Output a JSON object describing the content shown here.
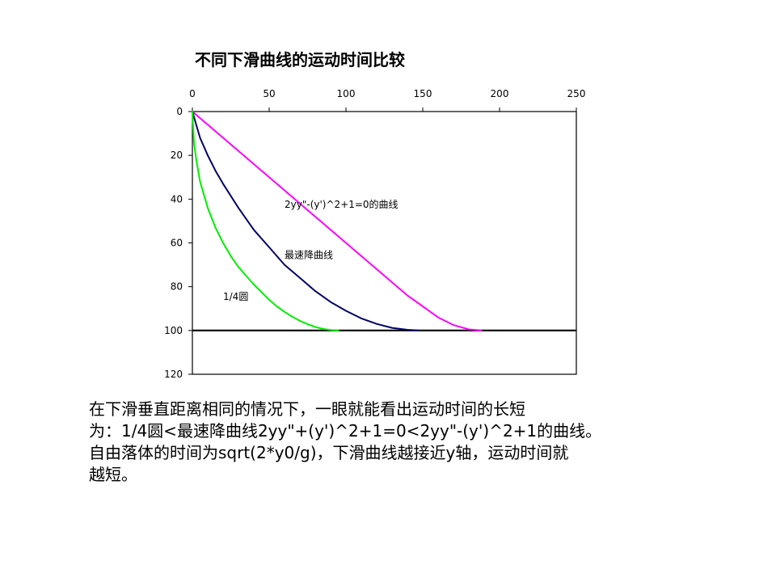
{
  "chart_data": {
    "type": "line",
    "title": "不同下滑曲线的运动时间比较",
    "xlim": [
      0,
      250
    ],
    "ylim": [
      0,
      120
    ],
    "y_inverted": true,
    "x_axis_position": "top",
    "x_ticks": [
      0,
      50,
      100,
      150,
      200,
      250
    ],
    "y_ticks": [
      0,
      20,
      40,
      60,
      80,
      100,
      120
    ],
    "grid": false,
    "reference_lines": [
      {
        "axis": "y",
        "value": 100
      }
    ],
    "series": [
      {
        "name": "2yy\"-(y')^2+1=0的曲线",
        "color": "#ff00ff",
        "points": [
          [
            0,
            0
          ],
          [
            10,
            6
          ],
          [
            20,
            12
          ],
          [
            30,
            18
          ],
          [
            40,
            24
          ],
          [
            50,
            30
          ],
          [
            60,
            36
          ],
          [
            70,
            42
          ],
          [
            80,
            48
          ],
          [
            90,
            54
          ],
          [
            100,
            60
          ],
          [
            110,
            66
          ],
          [
            120,
            72
          ],
          [
            130,
            78
          ],
          [
            140,
            84
          ],
          [
            150,
            89
          ],
          [
            160,
            94
          ],
          [
            170,
            97.5
          ],
          [
            180,
            99.5
          ],
          [
            188,
            100
          ]
        ]
      },
      {
        "name": "最速降曲线",
        "color": "#000066",
        "points": [
          [
            0,
            0
          ],
          [
            5,
            12
          ],
          [
            10,
            20
          ],
          [
            15,
            27
          ],
          [
            20,
            33
          ],
          [
            30,
            44
          ],
          [
            40,
            54
          ],
          [
            50,
            62
          ],
          [
            60,
            70
          ],
          [
            70,
            76
          ],
          [
            80,
            82
          ],
          [
            90,
            87
          ],
          [
            100,
            91
          ],
          [
            110,
            94.5
          ],
          [
            120,
            97
          ],
          [
            130,
            98.8
          ],
          [
            140,
            99.7
          ],
          [
            147,
            100
          ]
        ]
      },
      {
        "name": "1/4圆",
        "color": "#00ee00",
        "points": [
          [
            0,
            0
          ],
          [
            1,
            14
          ],
          [
            2.5,
            22
          ],
          [
            5,
            32
          ],
          [
            10,
            44
          ],
          [
            15,
            53
          ],
          [
            20,
            60
          ],
          [
            25,
            66
          ],
          [
            30,
            71
          ],
          [
            35,
            75
          ],
          [
            40,
            79
          ],
          [
            45,
            82.5
          ],
          [
            50,
            86
          ],
          [
            55,
            89
          ],
          [
            60,
            91.5
          ],
          [
            65,
            93.7
          ],
          [
            70,
            95.6
          ],
          [
            75,
            97.1
          ],
          [
            80,
            98.4
          ],
          [
            85,
            99.3
          ],
          [
            90,
            99.8
          ],
          [
            95,
            100
          ]
        ]
      }
    ],
    "annotations": [
      {
        "text": "2yy\"-(y')^2+1=0的曲线",
        "x": 60,
        "y": 44
      },
      {
        "text": "最速降曲线",
        "x": 60,
        "y": 67
      },
      {
        "text": "1/4圆",
        "x": 20,
        "y": 86
      }
    ]
  },
  "caption": {
    "line1": "在下滑垂直距离相同的情况下，一眼就能看出运动时间的长短",
    "line2": "为：1/4圆<最速降曲线2yy\"+(y')^2+1=0<2yy\"-(y')^2+1的曲线。",
    "line3": "自由落体的时间为sqrt(2*y0/g)，下滑曲线越接近y轴，运动时间就",
    "line4": "越短。"
  }
}
